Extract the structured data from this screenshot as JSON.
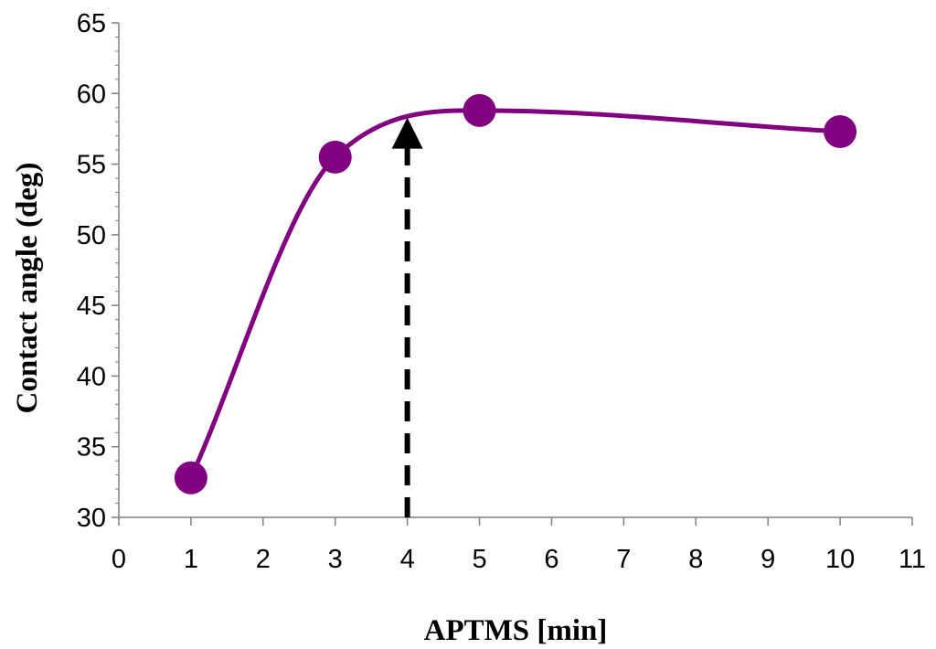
{
  "chart_data": {
    "type": "line",
    "title": "",
    "xlabel": "APTMS [min]",
    "ylabel": "Contact angle (deg)",
    "xlim": [
      0,
      11
    ],
    "ylim": [
      30,
      65
    ],
    "x_ticks": [
      "0",
      "1",
      "2",
      "3",
      "4",
      "5",
      "6",
      "7",
      "8",
      "9",
      "10",
      "11"
    ],
    "y_ticks": [
      "30",
      "35",
      "40",
      "45",
      "50",
      "55",
      "60",
      "65"
    ],
    "grid": false,
    "legend": "none",
    "series": [
      {
        "x": [
          1,
          3,
          5,
          10
        ],
        "y": [
          32.8,
          55.5,
          58.8,
          57.3
        ],
        "color": "#800080",
        "marker": "circle",
        "line": "smooth"
      }
    ],
    "annotation": {
      "type": "dashed-arrow",
      "x": 4,
      "y_from": 30,
      "y_to": 58.3,
      "color": "#000000"
    }
  }
}
